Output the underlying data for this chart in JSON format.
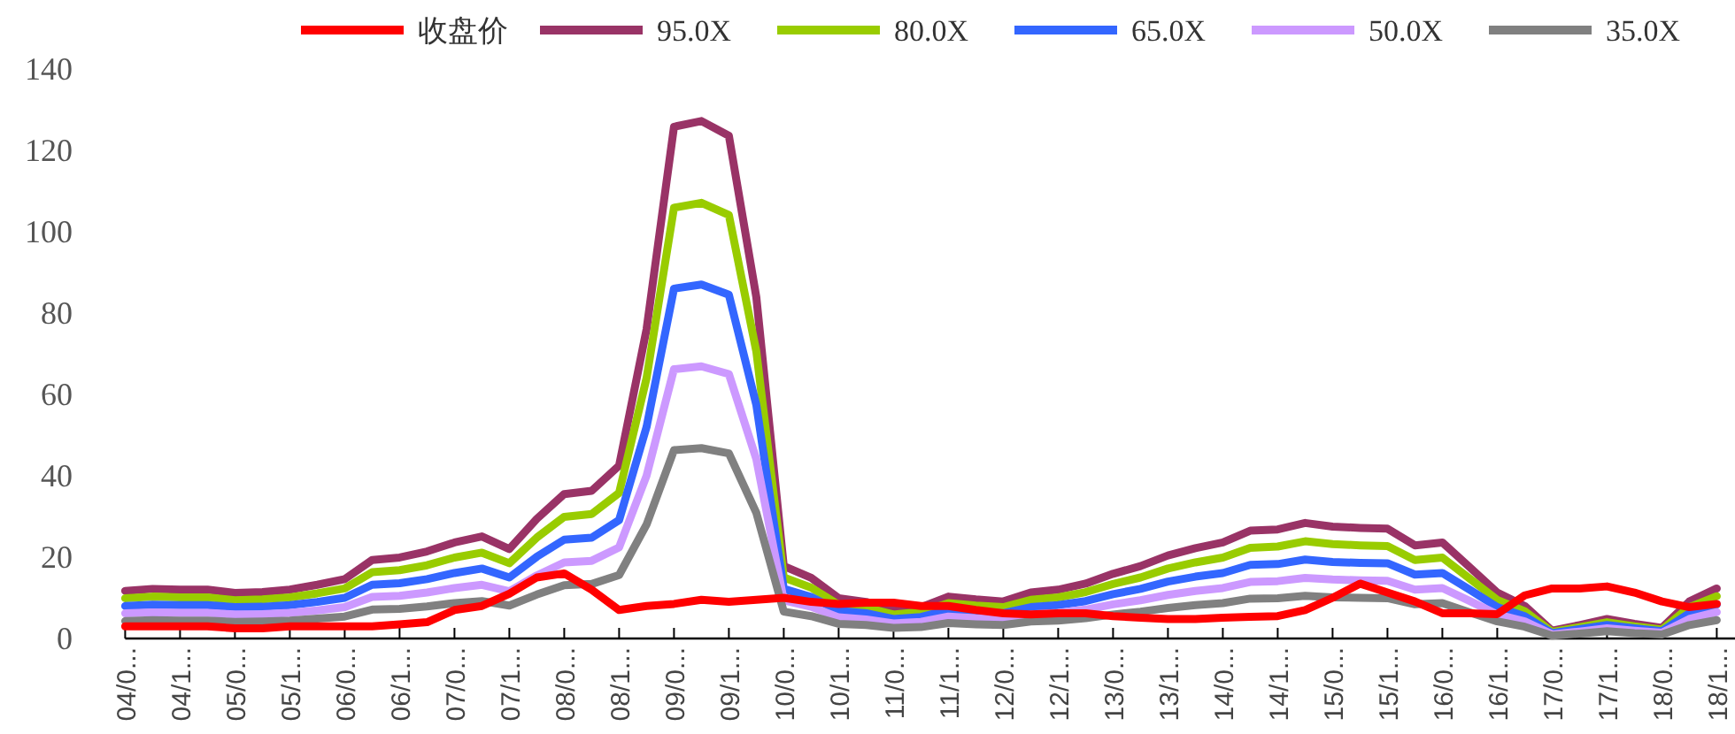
{
  "chart_data": {
    "type": "line",
    "legend": "top",
    "categories": [
      "04/0...",
      null,
      "04/1...",
      null,
      "05/0...",
      null,
      "05/1...",
      null,
      "06/0...",
      null,
      "06/1...",
      null,
      "07/0...",
      null,
      "07/1...",
      null,
      "08/0...",
      null,
      "08/1...",
      null,
      "09/0...",
      null,
      "09/1...",
      null,
      "10/0...",
      null,
      "10/1...",
      null,
      "11/0...",
      null,
      "11/1...",
      null,
      "12/0...",
      null,
      "12/1...",
      null,
      "13/0...",
      null,
      "13/1...",
      null,
      "14/0...",
      null,
      "14/1...",
      null,
      "15/0...",
      null,
      "15/1...",
      null,
      "16/0...",
      null,
      "16/1...",
      null,
      "17/0...",
      null,
      "17/1...",
      null,
      "18/0...",
      null,
      "18/1..."
    ],
    "ylim": [
      0,
      140
    ],
    "yticks": [
      0,
      20,
      40,
      60,
      80,
      100,
      120,
      140
    ],
    "series": [
      {
        "name": "收盘价",
        "color": "#ff0000",
        "values": [
          3,
          3,
          3,
          3,
          2.5,
          2.5,
          3,
          3,
          3,
          3,
          3.5,
          4,
          7,
          8,
          11,
          15,
          16,
          12,
          7,
          8,
          8.5,
          9.5,
          9,
          9.5,
          10,
          9,
          8.5,
          8.8,
          8.8,
          8,
          8,
          7,
          6.2,
          5.9,
          6.2,
          6.2,
          5.5,
          5.1,
          4.8,
          4.8,
          5.1,
          5.3,
          5.5,
          7,
          10,
          13.5,
          11.3,
          9.1,
          6.2,
          6.2,
          6,
          10.6,
          12.3,
          12.3,
          12.8,
          11.3,
          9.1,
          7.7,
          8.5
        ]
      },
      {
        "name": "95.0X",
        "color": "#993366",
        "values": [
          11.7,
          12.2,
          12,
          12,
          11.2,
          11.4,
          12,
          13.2,
          14.6,
          19.3,
          19.9,
          21.4,
          23.6,
          25.1,
          22,
          29.4,
          35.5,
          36.3,
          42.5,
          76,
          125.8,
          127.2,
          123.6,
          83.9,
          17.8,
          14.9,
          9.9,
          9,
          7,
          7.7,
          10.3,
          9.6,
          9.1,
          11.3,
          12,
          13.5,
          15.9,
          17.8,
          20.4,
          22.2,
          23.6,
          26.5,
          26.8,
          28.4,
          27.5,
          27.2,
          27,
          22.9,
          23.6,
          17.5,
          11.3,
          8,
          1.9,
          3.3,
          4.8,
          3.6,
          2.6,
          9.1,
          12.3
        ]
      },
      {
        "name": "80.0X",
        "color": "#99cc00",
        "values": [
          9.9,
          10.3,
          10.1,
          10.1,
          9.4,
          9.6,
          10.1,
          11.1,
          12.3,
          16.3,
          16.8,
          18,
          19.9,
          21.1,
          18.5,
          24.8,
          29.9,
          30.6,
          35.8,
          64,
          105.9,
          107.1,
          104.1,
          70.6,
          15,
          12.5,
          8.3,
          7.6,
          5.9,
          6.5,
          8.7,
          8.1,
          7.7,
          9.5,
          10.1,
          11.4,
          13.4,
          15,
          17.2,
          18.7,
          19.9,
          22.3,
          22.6,
          23.9,
          23.2,
          22.9,
          22.7,
          19.3,
          19.9,
          14.7,
          9.5,
          6.7,
          1.6,
          2.8,
          4,
          3,
          2.2,
          7.7,
          10.4
        ]
      },
      {
        "name": "65.0X",
        "color": "#3366ff",
        "values": [
          8,
          8.3,
          8.2,
          8.2,
          7.7,
          7.8,
          8.2,
          9,
          10,
          13.2,
          13.6,
          14.6,
          16.1,
          17.2,
          15,
          20.1,
          24.3,
          24.8,
          29.1,
          52,
          86,
          87,
          84.5,
          57.4,
          12.2,
          10.2,
          6.8,
          6.2,
          4.8,
          5.3,
          7,
          6.6,
          6.2,
          7.7,
          8.2,
          9.2,
          10.9,
          12.2,
          14,
          15.2,
          16.1,
          18.1,
          18.3,
          19.4,
          18.8,
          18.6,
          18.5,
          15.7,
          16.1,
          12,
          7.7,
          5.5,
          1.3,
          2.3,
          3.3,
          2.5,
          1.8,
          6.2,
          8.4
        ]
      },
      {
        "name": "50.0X",
        "color": "#cc99ff",
        "values": [
          6.2,
          6.4,
          6.3,
          6.3,
          5.9,
          6,
          6.3,
          6.9,
          7.7,
          10.2,
          10.5,
          11.3,
          12.4,
          13.2,
          11.6,
          15.5,
          18.7,
          19.1,
          22.4,
          40,
          66.2,
          66.9,
          65,
          44.1,
          9.4,
          7.8,
          5.2,
          4.7,
          3.7,
          4.1,
          5.4,
          5,
          4.8,
          5.9,
          6.3,
          7.1,
          8.4,
          9.4,
          10.7,
          11.7,
          12.4,
          13.9,
          14.1,
          14.9,
          14.5,
          14.3,
          14.2,
          12,
          12.4,
          9.2,
          5.9,
          4.2,
          1,
          1.7,
          2.5,
          1.9,
          1.4,
          4.8,
          6.5
        ]
      },
      {
        "name": "35.0X",
        "color": "#808080",
        "values": [
          4.3,
          4.5,
          4.4,
          4.4,
          4.1,
          4.2,
          4.4,
          4.9,
          5.4,
          7.1,
          7.3,
          7.9,
          8.7,
          9.2,
          8.1,
          10.8,
          13.1,
          13.4,
          15.6,
          28,
          46.3,
          46.8,
          45.5,
          30.9,
          6.6,
          5.5,
          3.6,
          3.3,
          2.6,
          2.8,
          3.8,
          3.5,
          3.3,
          4.2,
          4.4,
          5,
          5.9,
          6.6,
          7.5,
          8.2,
          8.7,
          9.8,
          9.9,
          10.5,
          10.1,
          10,
          9.9,
          8.4,
          8.7,
          6.4,
          4.2,
          2.9,
          0.7,
          1.2,
          1.8,
          1.3,
          1,
          3.3,
          4.5
        ]
      }
    ]
  }
}
